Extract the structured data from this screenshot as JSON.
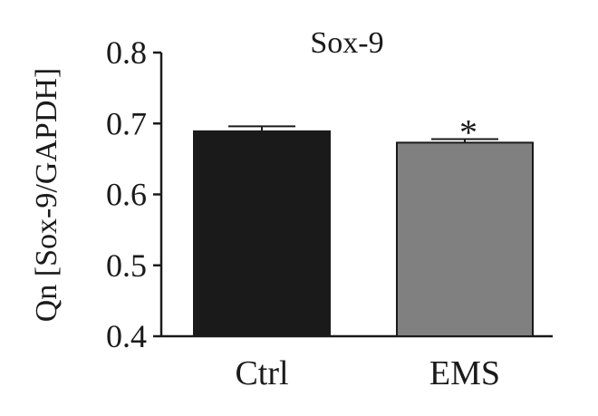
{
  "chart_data": {
    "type": "bar",
    "title": "Sox-9",
    "ylabel": "Qn [Sox-9/GAPDH]",
    "xlabel": "",
    "categories": [
      "Ctrl",
      "EMS"
    ],
    "values": [
      0.689,
      0.673
    ],
    "errors": [
      0.007,
      0.005
    ],
    "ylim": [
      0.4,
      0.8
    ],
    "yticks": [
      0.4,
      0.5,
      0.6,
      0.7,
      0.8
    ],
    "ytick_labels": [
      "0.4",
      "0.5",
      "0.6",
      "0.7",
      "0.8"
    ],
    "bar_colors": [
      "#1a1a1a",
      "#808080"
    ],
    "annotations": [
      {
        "category": "EMS",
        "text": "*"
      }
    ],
    "grid": false,
    "legend": "none"
  }
}
